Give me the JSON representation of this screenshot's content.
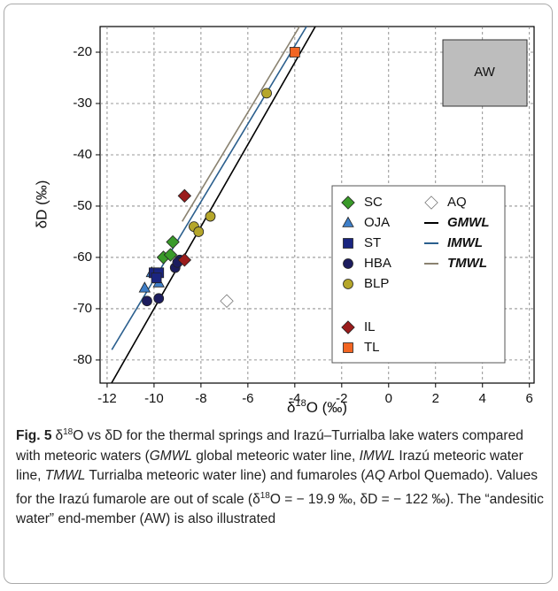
{
  "chart_data": {
    "type": "scatter",
    "x_label": {
      "prefix": "δ",
      "sup": "18",
      "rest": "O (‰)"
    },
    "y_label": "δD (‰)",
    "xlim": [
      -12.3,
      6.2
    ],
    "ylim": [
      -84.5,
      -15
    ],
    "xticks": [
      -12,
      -10,
      -8,
      -6,
      -4,
      -2,
      0,
      2,
      4,
      6
    ],
    "yticks": [
      -80,
      -70,
      -60,
      -50,
      -40,
      -30,
      -20
    ],
    "grid": true,
    "region_label": "AW",
    "series": [
      {
        "name": "SC",
        "color": "#3a9a2a",
        "marker": "diamond",
        "x": [
          -9.2,
          -9.6,
          -9.3
        ],
        "y": [
          -57,
          -60,
          -59.5
        ]
      },
      {
        "name": "OJA",
        "color": "#3f7fc8",
        "marker": "triangle",
        "x": [
          -10.4,
          -10.1,
          -9.8
        ],
        "y": [
          -66,
          -63,
          -65
        ]
      },
      {
        "name": "ST",
        "color": "#1a2580",
        "marker": "square",
        "x": [
          -10.0,
          -9.8,
          -9.9
        ],
        "y": [
          -63,
          -63,
          -64
        ]
      },
      {
        "name": "HBA",
        "color": "#1c1c5e",
        "marker": "circle",
        "x": [
          -10.3,
          -9.8,
          -9.1,
          -8.9,
          -9.0
        ],
        "y": [
          -68.5,
          -68,
          -62,
          -60.5,
          -61
        ]
      },
      {
        "name": "BLP",
        "color": "#b5a62a",
        "marker": "circle",
        "x": [
          -8.3,
          -8.1,
          -7.6,
          -5.2
        ],
        "y": [
          -54,
          -55,
          -52,
          -28
        ]
      },
      {
        "name": "IL",
        "color": "#9a1c1c",
        "marker": "diamond",
        "x": [
          -8.7,
          -8.7
        ],
        "y": [
          -48,
          -60.5
        ]
      },
      {
        "name": "TL",
        "color": "#f26522",
        "marker": "square",
        "x": [
          -4.0
        ],
        "y": [
          -20
        ]
      },
      {
        "name": "AQ",
        "color": "#ffffff",
        "marker": "diamond",
        "x": [
          -6.9
        ],
        "y": [
          -68.5
        ]
      },
      {
        "name": "GMWL",
        "color": "#000000",
        "marker": "line",
        "x": [
          -11.9,
          -3.1
        ],
        "y": [
          -85.2,
          -14.8
        ]
      },
      {
        "name": "IMWL",
        "color": "#2b5f8e",
        "marker": "line",
        "x": [
          -11.8,
          -3.5
        ],
        "y": [
          -78,
          -15
        ]
      },
      {
        "name": "TMWL",
        "color": "#8a8270",
        "marker": "line",
        "x": [
          -8.8,
          -3.8
        ],
        "y": [
          -53,
          -15
        ]
      }
    ],
    "caption": {
      "label": "Fig. 5",
      "segments": [
        {
          "text": "δ"
        },
        {
          "text": "18",
          "style": "sup"
        },
        {
          "text": "O vs δD for the thermal springs and Irazú–Turrialba lake waters compared with meteoric waters ("
        },
        {
          "text": "GMWL",
          "style": "italic"
        },
        {
          "text": " global meteoric water line, "
        },
        {
          "text": "IMWL",
          "style": "italic"
        },
        {
          "text": " Irazú meteoric water line, "
        },
        {
          "text": "TMWL",
          "style": "italic"
        },
        {
          "text": " Turrialba meteoric water line) and fumaroles ("
        },
        {
          "text": "AQ",
          "style": "italic"
        },
        {
          "text": " Arbol Quemado). Values for the Irazú fumarole are out of scale (δ"
        },
        {
          "text": "18",
          "style": "sup"
        },
        {
          "text": "O = − 19.9 ‰, δD = − 122 ‰). The “andesitic water” end-member (AW) is also illustrated"
        }
      ]
    }
  }
}
